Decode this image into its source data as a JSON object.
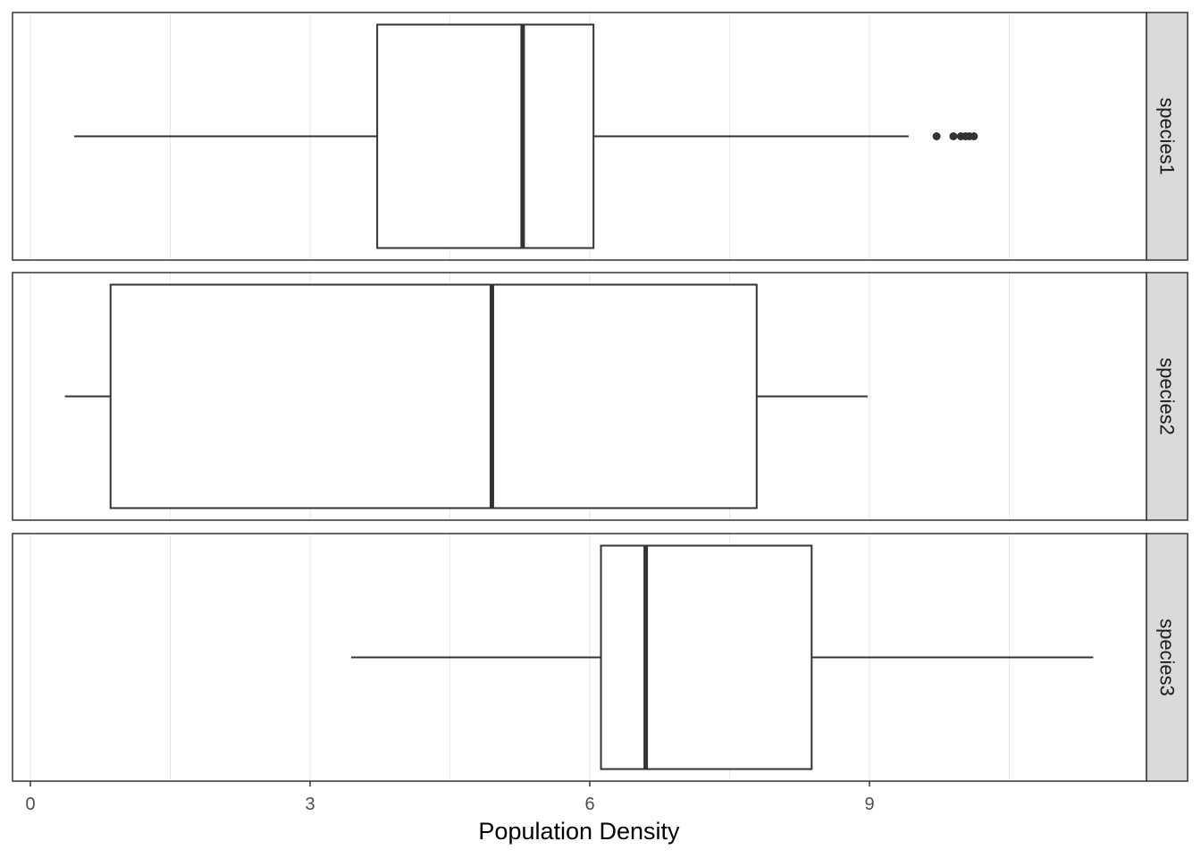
{
  "chart_data": {
    "type": "boxplot",
    "orientation": "horizontal",
    "facet": "rows",
    "xlabel": "Population Density",
    "xlim": [
      -0.2,
      12.0
    ],
    "x_ticks": [
      0,
      3,
      6,
      9
    ],
    "x_minor_ticks": [
      1.5,
      4.5,
      7.5,
      10.5
    ],
    "grid": true,
    "colors": {
      "box_stroke": "#333333",
      "strip_fill": "#d9d9d9",
      "grid": "#ebebeb"
    },
    "panels": [
      {
        "label": "species1",
        "whisker_low": 0.47,
        "q1": 3.72,
        "median": 5.28,
        "q3": 6.04,
        "whisker_high": 9.42,
        "outliers": [
          9.72,
          9.9,
          9.98,
          10.03,
          10.07,
          10.12
        ]
      },
      {
        "label": "species2",
        "whisker_low": 0.37,
        "q1": 0.86,
        "median": 4.95,
        "q3": 7.79,
        "whisker_high": 8.98,
        "outliers": []
      },
      {
        "label": "species3",
        "whisker_low": 3.44,
        "q1": 6.12,
        "median": 6.6,
        "q3": 8.38,
        "whisker_high": 11.4,
        "outliers": []
      }
    ]
  }
}
